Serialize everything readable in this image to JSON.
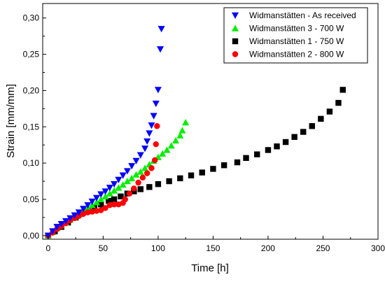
{
  "chart_data": {
    "type": "scatter",
    "title": "",
    "xlabel": "Time [h]",
    "ylabel": "Strain [mm/mm]",
    "xlim": [
      -5,
      300
    ],
    "ylim": [
      -0.005,
      0.32
    ],
    "x_ticks": [
      0,
      50,
      100,
      150,
      200,
      250,
      300
    ],
    "y_ticks": [
      0.0,
      0.05,
      0.1,
      0.15,
      0.2,
      0.25,
      0.3
    ],
    "y_tick_labels": [
      "0,00",
      "0,05",
      "0,10",
      "0,15",
      "0,20",
      "0,25",
      "0,30"
    ],
    "legend_position": "top-right",
    "series": [
      {
        "name": "Widmanstätten - As received",
        "color": "#0000ff",
        "marker": "triangle-down",
        "points": [
          [
            0,
            0.0
          ],
          [
            4,
            0.006
          ],
          [
            8,
            0.012
          ],
          [
            12,
            0.016
          ],
          [
            16,
            0.02
          ],
          [
            20,
            0.024
          ],
          [
            24,
            0.028
          ],
          [
            28,
            0.032
          ],
          [
            32,
            0.037
          ],
          [
            36,
            0.042
          ],
          [
            40,
            0.047
          ],
          [
            44,
            0.052
          ],
          [
            48,
            0.057
          ],
          [
            52,
            0.061
          ],
          [
            56,
            0.066
          ],
          [
            60,
            0.071
          ],
          [
            64,
            0.077
          ],
          [
            68,
            0.083
          ],
          [
            72,
            0.089
          ],
          [
            76,
            0.096
          ],
          [
            80,
            0.103
          ],
          [
            84,
            0.111
          ],
          [
            88,
            0.12
          ],
          [
            90,
            0.13
          ],
          [
            92,
            0.141
          ],
          [
            94,
            0.152
          ],
          [
            96,
            0.165
          ],
          [
            98,
            0.182
          ],
          [
            100,
            0.201
          ],
          [
            102,
            0.257
          ],
          [
            103,
            0.285
          ]
        ]
      },
      {
        "name": "Widmanstätten 3 - 700 W",
        "color": "#00ee00",
        "marker": "triangle-up",
        "points": [
          [
            0,
            0.0
          ],
          [
            4,
            0.005
          ],
          [
            8,
            0.01
          ],
          [
            12,
            0.014
          ],
          [
            16,
            0.018
          ],
          [
            20,
            0.022
          ],
          [
            24,
            0.026
          ],
          [
            28,
            0.03
          ],
          [
            32,
            0.034
          ],
          [
            36,
            0.038
          ],
          [
            40,
            0.042
          ],
          [
            44,
            0.046
          ],
          [
            48,
            0.05
          ],
          [
            52,
            0.054
          ],
          [
            56,
            0.058
          ],
          [
            60,
            0.062
          ],
          [
            64,
            0.066
          ],
          [
            68,
            0.07
          ],
          [
            72,
            0.075
          ],
          [
            76,
            0.079
          ],
          [
            80,
            0.084
          ],
          [
            84,
            0.088
          ],
          [
            88,
            0.093
          ],
          [
            92,
            0.098
          ],
          [
            96,
            0.103
          ],
          [
            100,
            0.108
          ],
          [
            104,
            0.113
          ],
          [
            108,
            0.118
          ],
          [
            112,
            0.124
          ],
          [
            116,
            0.131
          ],
          [
            120,
            0.138
          ],
          [
            122,
            0.145
          ],
          [
            125,
            0.156
          ]
        ]
      },
      {
        "name": "Widmanstätten 1 - 750 W",
        "color": "#000000",
        "marker": "square",
        "points": [
          [
            0,
            0.0
          ],
          [
            6,
            0.006
          ],
          [
            12,
            0.012
          ],
          [
            18,
            0.018
          ],
          [
            25,
            0.025
          ],
          [
            30,
            0.03
          ],
          [
            36,
            0.034
          ],
          [
            42,
            0.039
          ],
          [
            48,
            0.043
          ],
          [
            55,
            0.048
          ],
          [
            60,
            0.05
          ],
          [
            66,
            0.054
          ],
          [
            72,
            0.058
          ],
          [
            78,
            0.061
          ],
          [
            84,
            0.064
          ],
          [
            92,
            0.067
          ],
          [
            100,
            0.071
          ],
          [
            110,
            0.075
          ],
          [
            120,
            0.079
          ],
          [
            130,
            0.083
          ],
          [
            140,
            0.087
          ],
          [
            150,
            0.092
          ],
          [
            160,
            0.097
          ],
          [
            172,
            0.101
          ],
          [
            180,
            0.107
          ],
          [
            190,
            0.112
          ],
          [
            200,
            0.118
          ],
          [
            208,
            0.123
          ],
          [
            216,
            0.129
          ],
          [
            224,
            0.136
          ],
          [
            232,
            0.143
          ],
          [
            240,
            0.151
          ],
          [
            248,
            0.161
          ],
          [
            256,
            0.171
          ],
          [
            264,
            0.183
          ],
          [
            268,
            0.201
          ]
        ]
      },
      {
        "name": "Widmanstätten 2 - 800 W",
        "color": "#ff0000",
        "marker": "circle",
        "points": [
          [
            0,
            0.0
          ],
          [
            4,
            0.004
          ],
          [
            8,
            0.009
          ],
          [
            12,
            0.013
          ],
          [
            16,
            0.017
          ],
          [
            20,
            0.021
          ],
          [
            24,
            0.024
          ],
          [
            28,
            0.027
          ],
          [
            32,
            0.03
          ],
          [
            36,
            0.032
          ],
          [
            40,
            0.033
          ],
          [
            44,
            0.034
          ],
          [
            48,
            0.035
          ],
          [
            52,
            0.038
          ],
          [
            56,
            0.042
          ],
          [
            60,
            0.043
          ],
          [
            64,
            0.043
          ],
          [
            68,
            0.045
          ],
          [
            70,
            0.05
          ],
          [
            74,
            0.058
          ],
          [
            78,
            0.065
          ],
          [
            82,
            0.073
          ],
          [
            86,
            0.08
          ],
          [
            90,
            0.086
          ],
          [
            94,
            0.093
          ],
          [
            97,
            0.104
          ],
          [
            98,
            0.126
          ],
          [
            99,
            0.151
          ]
        ]
      }
    ]
  }
}
